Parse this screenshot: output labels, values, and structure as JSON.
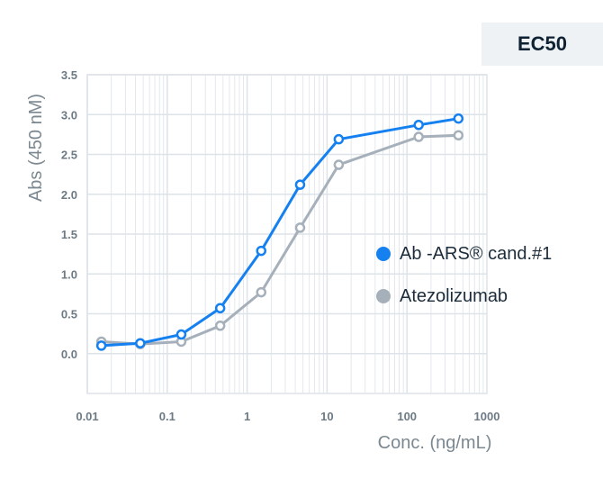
{
  "badge": {
    "label": "EC50"
  },
  "colors": {
    "series1": "#1580f0",
    "series2": "#a6b0ba",
    "grid": "#dde3e8",
    "badge_bg": "#eef2f4"
  },
  "chart_data": {
    "type": "line",
    "title": "",
    "xlabel": "Conc. (ng/mL)",
    "ylabel": "Abs (450 nM)",
    "xscale": "log",
    "xlim": [
      0.01,
      1000
    ],
    "ylim": [
      -0.5,
      3.5
    ],
    "grid": true,
    "legend_position": "right",
    "x_ticks": [
      "0.01",
      "0.1",
      "1",
      "10",
      "100",
      "1000"
    ],
    "y_ticks": [
      "0.0",
      "0.5",
      "1.0",
      "1.5",
      "2.0",
      "2.5",
      "3.0",
      "3.5"
    ],
    "series": [
      {
        "name": "Ab -ARS® cand.#1",
        "x": [
          0.015,
          0.046,
          0.15,
          0.46,
          1.5,
          4.6,
          14,
          140,
          440
        ],
        "y": [
          0.1,
          0.13,
          0.24,
          0.57,
          1.29,
          2.12,
          2.69,
          2.87,
          2.95
        ]
      },
      {
        "name": "Atezolizumab",
        "x": [
          0.015,
          0.046,
          0.15,
          0.46,
          1.5,
          4.6,
          14,
          140,
          440
        ],
        "y": [
          0.15,
          0.12,
          0.15,
          0.35,
          0.77,
          1.58,
          2.37,
          2.72,
          2.74
        ]
      }
    ]
  }
}
